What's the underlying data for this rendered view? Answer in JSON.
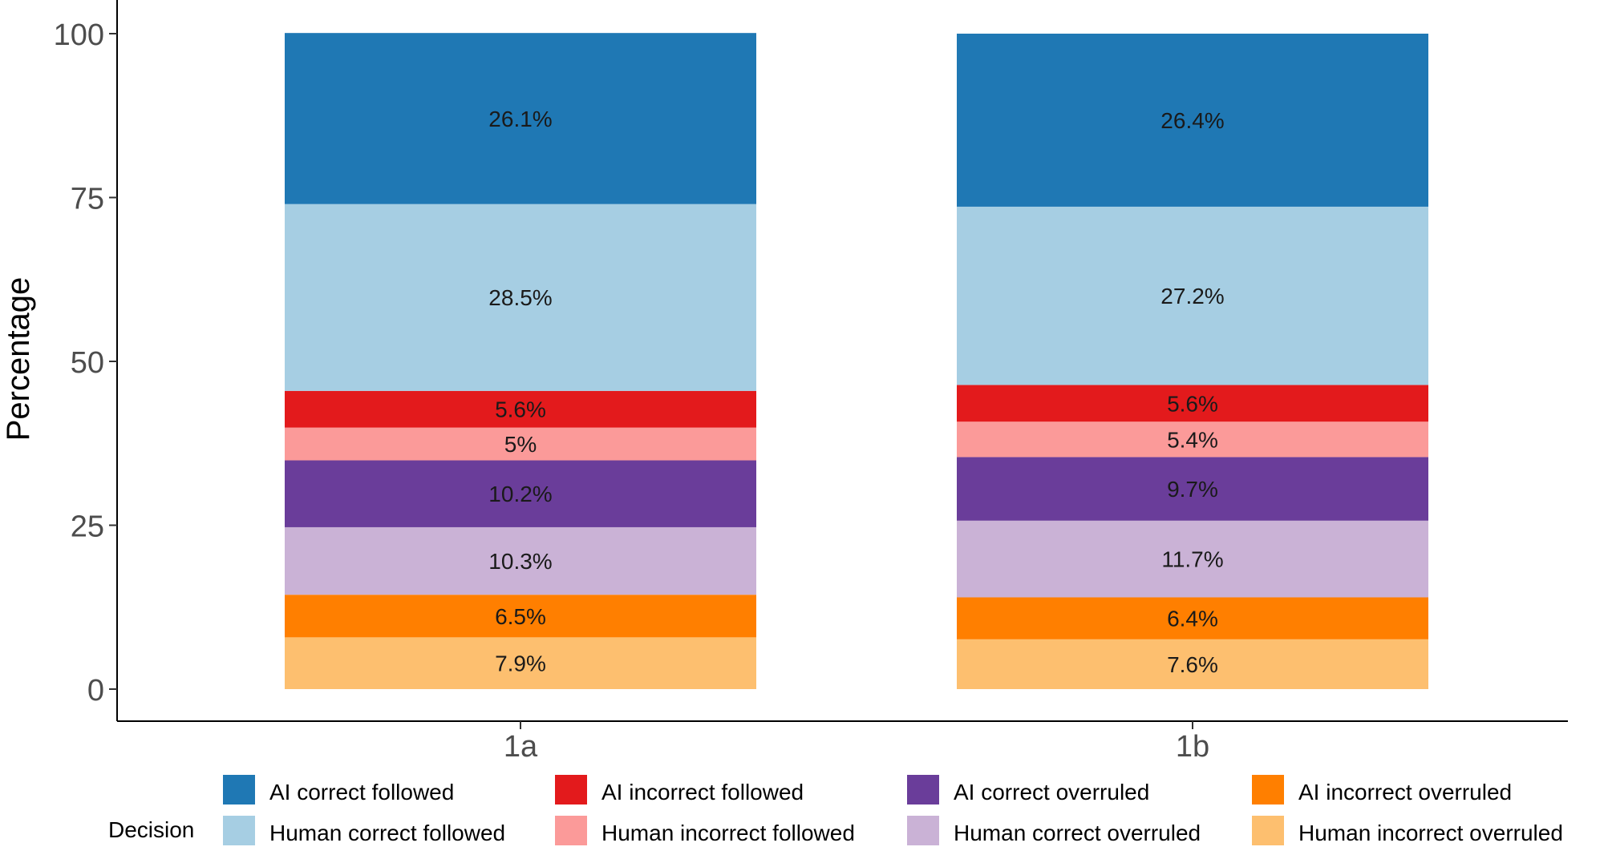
{
  "chart_data": {
    "type": "bar",
    "stacked": true,
    "ylabel": "Percentage",
    "xlabel": "",
    "ylim": [
      0,
      100
    ],
    "yticks": [
      "0",
      "25",
      "50",
      "75",
      "100"
    ],
    "grid": false,
    "categories": [
      "1a",
      "1b"
    ],
    "series": [
      {
        "name": "Human incorrect overruled",
        "color": "#FDBF6F",
        "values": [
          7.9,
          7.6
        ],
        "labels": [
          "7.9%",
          "7.6%"
        ]
      },
      {
        "name": "AI incorrect overruled",
        "color": "#FF7F00",
        "values": [
          6.5,
          6.4
        ],
        "labels": [
          "6.5%",
          "6.4%"
        ]
      },
      {
        "name": "Human correct overruled",
        "color": "#CAB2D6",
        "values": [
          10.3,
          11.7
        ],
        "labels": [
          "10.3%",
          "11.7%"
        ]
      },
      {
        "name": "AI correct overruled",
        "color": "#6A3D9A",
        "values": [
          10.2,
          9.7
        ],
        "labels": [
          "10.2%",
          "9.7%"
        ]
      },
      {
        "name": "Human incorrect followed",
        "color": "#FB9A99",
        "values": [
          5.0,
          5.4
        ],
        "labels": [
          "5%",
          "5.4%"
        ]
      },
      {
        "name": "AI incorrect followed",
        "color": "#E31A1C",
        "values": [
          5.6,
          5.6
        ],
        "labels": [
          "5.6%",
          "5.6%"
        ]
      },
      {
        "name": "Human correct followed",
        "color": "#A6CEE3",
        "values": [
          28.5,
          27.2
        ],
        "labels": [
          "28.5%",
          "27.2%"
        ]
      },
      {
        "name": "AI correct followed",
        "color": "#1F78B4",
        "values": [
          26.1,
          26.4
        ],
        "labels": [
          "26.1%",
          "26.4%"
        ]
      }
    ],
    "legend": {
      "title": "Decision",
      "position": "bottom",
      "order": [
        "AI correct followed",
        "AI incorrect followed",
        "AI correct overruled",
        "AI incorrect overruled",
        "Human correct followed",
        "Human incorrect followed",
        "Human correct overruled",
        "Human incorrect overruled"
      ]
    }
  }
}
